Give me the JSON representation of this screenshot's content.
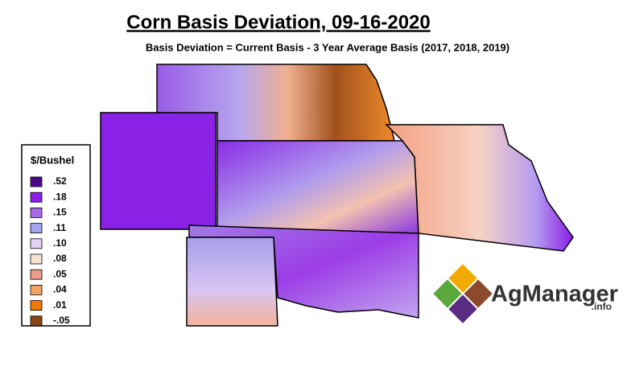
{
  "title": "Corn Basis Deviation, 09-16-2020",
  "subtitle": "Basis Deviation = Current Basis - 3 Year Average Basis (2017, 2018, 2019)",
  "legend": {
    "title": "$/Bushel",
    "items": [
      {
        "label": ".52",
        "color": "#4b0a8c"
      },
      {
        "label": ".18",
        "color": "#8a1ee6"
      },
      {
        "label": ".15",
        "color": "#a869ea"
      },
      {
        "label": ".11",
        "color": "#a3a3f0"
      },
      {
        "label": ".10",
        "color": "#e3d2f5"
      },
      {
        "label": ".08",
        "color": "#f8e2d2"
      },
      {
        "label": ".05",
        "color": "#f09c8c"
      },
      {
        "label": ".04",
        "color": "#f5a462"
      },
      {
        "label": ".01",
        "color": "#ef7a00"
      },
      {
        "label": "-.05",
        "color": "#8b4513"
      }
    ]
  },
  "logo": {
    "name": "AgManager",
    "suffix": ".info"
  }
}
